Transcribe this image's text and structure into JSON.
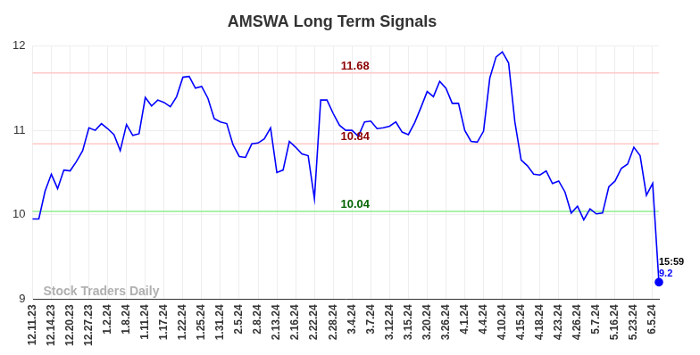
{
  "chart_data": {
    "type": "line",
    "title": "AMSWA Long Term Signals",
    "categories": [
      "12.11.23",
      null,
      null,
      "12.14.23",
      null,
      null,
      "12.20.23",
      null,
      null,
      "12.27.23",
      null,
      null,
      "1.2.24",
      null,
      null,
      "1.8.24",
      null,
      null,
      "1.11.24",
      null,
      null,
      "1.17.24",
      null,
      null,
      "1.22.24",
      null,
      null,
      "1.25.24",
      null,
      null,
      "1.31.24",
      null,
      null,
      "2.5.24",
      null,
      null,
      "2.8.24",
      null,
      null,
      "2.13.24",
      null,
      null,
      "2.16.24",
      null,
      null,
      "2.22.24",
      null,
      null,
      "2.28.24",
      null,
      null,
      "3.4.24",
      null,
      null,
      "3.7.24",
      null,
      null,
      "3.12.24",
      null,
      null,
      "3.15.24",
      null,
      null,
      "3.20.24",
      null,
      null,
      "3.26.24",
      null,
      null,
      "4.1.24",
      null,
      null,
      "4.4.24",
      null,
      null,
      "4.10.24",
      null,
      null,
      "4.15.24",
      null,
      null,
      "4.18.24",
      null,
      null,
      "4.23.24",
      null,
      null,
      "4.26.24",
      null,
      null,
      "5.7.24",
      null,
      null,
      "5.16.24",
      null,
      null,
      "5.23.24",
      null,
      null,
      "6.5.24",
      null
    ],
    "values": [
      9.95,
      9.95,
      10.28,
      10.48,
      10.31,
      10.53,
      10.52,
      10.63,
      10.76,
      11.03,
      11.0,
      11.08,
      11.02,
      10.95,
      10.76,
      11.07,
      10.94,
      10.96,
      11.39,
      11.29,
      11.36,
      11.33,
      11.28,
      11.4,
      11.63,
      11.64,
      11.5,
      11.52,
      11.38,
      11.14,
      11.1,
      11.08,
      10.83,
      10.69,
      10.68,
      10.84,
      10.85,
      10.9,
      11.03,
      10.5,
      10.53,
      10.87,
      10.8,
      10.72,
      10.7,
      10.19,
      11.36,
      11.36,
      11.2,
      11.06,
      11.0,
      11.0,
      10.93,
      11.1,
      11.11,
      11.02,
      11.03,
      11.05,
      11.1,
      10.98,
      10.95,
      11.09,
      11.27,
      11.46,
      11.4,
      11.58,
      11.5,
      11.32,
      11.32,
      11.0,
      10.87,
      10.86,
      10.99,
      11.62,
      11.87,
      11.93,
      11.8,
      11.1,
      10.65,
      10.58,
      10.48,
      10.47,
      10.52,
      10.37,
      10.4,
      10.27,
      10.02,
      10.1,
      9.94,
      10.07,
      10.01,
      10.02,
      10.33,
      10.4,
      10.55,
      10.6,
      10.8,
      10.7,
      10.23,
      10.37,
      9.2
    ],
    "color": "#0000ff",
    "ylim": [
      9,
      12
    ],
    "yticks": [
      9,
      10,
      11,
      12
    ],
    "grid": true,
    "levels": [
      {
        "value": 11.68,
        "color": "#8b0000",
        "line_color": "#ffc8c8"
      },
      {
        "value": 10.84,
        "color": "#8b0000",
        "line_color": "#ffc8c8"
      },
      {
        "value": 10.04,
        "color": "#006400",
        "line_color": "#90ee90"
      }
    ],
    "last_point_label": "15:59",
    "watermark": "Stock Traders Daily"
  }
}
